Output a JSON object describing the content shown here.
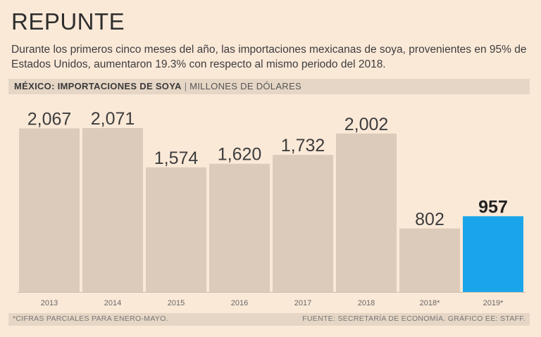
{
  "chart_data": {
    "type": "bar",
    "title": "REPUNTE",
    "subtitle": "Durante los primeros cinco meses del año, las importaciones mexicanas de soya, provenientes en 95% de Estados Unidos, aumentaron 19.3% con respecto al mismo periodo del 2018.",
    "header_bold": "MÉXICO: IMPORTACIONES DE SOYA",
    "header_separator": "|",
    "header_unit": "MILLONES DE DÓLARES",
    "categories": [
      "2013",
      "2014",
      "2015",
      "2016",
      "2017",
      "2018",
      "2018*",
      "2019*"
    ],
    "values": [
      2067,
      2071,
      1574,
      1620,
      1732,
      2002,
      802,
      957
    ],
    "value_labels": [
      "2,067",
      "2,071",
      "1,574",
      "1,620",
      "1,732",
      "2,002",
      "802",
      "957"
    ],
    "highlight_index": 7,
    "ylim": [
      0,
      2071
    ],
    "grid": false,
    "footnote": "*CIFRAS PARCIALES PARA ENERO-MAYO.",
    "source": "FUENTE: SECRETARÍA DE ECONOMÍA. GRÁFICO EE: STAFF."
  },
  "colors": {
    "background": "#fbe9d8",
    "bar": "#dccbba",
    "highlight": "#1aa5ea",
    "band": "#e6d6c5",
    "label": "#3d3d3d",
    "highlight_label": "#222222"
  }
}
